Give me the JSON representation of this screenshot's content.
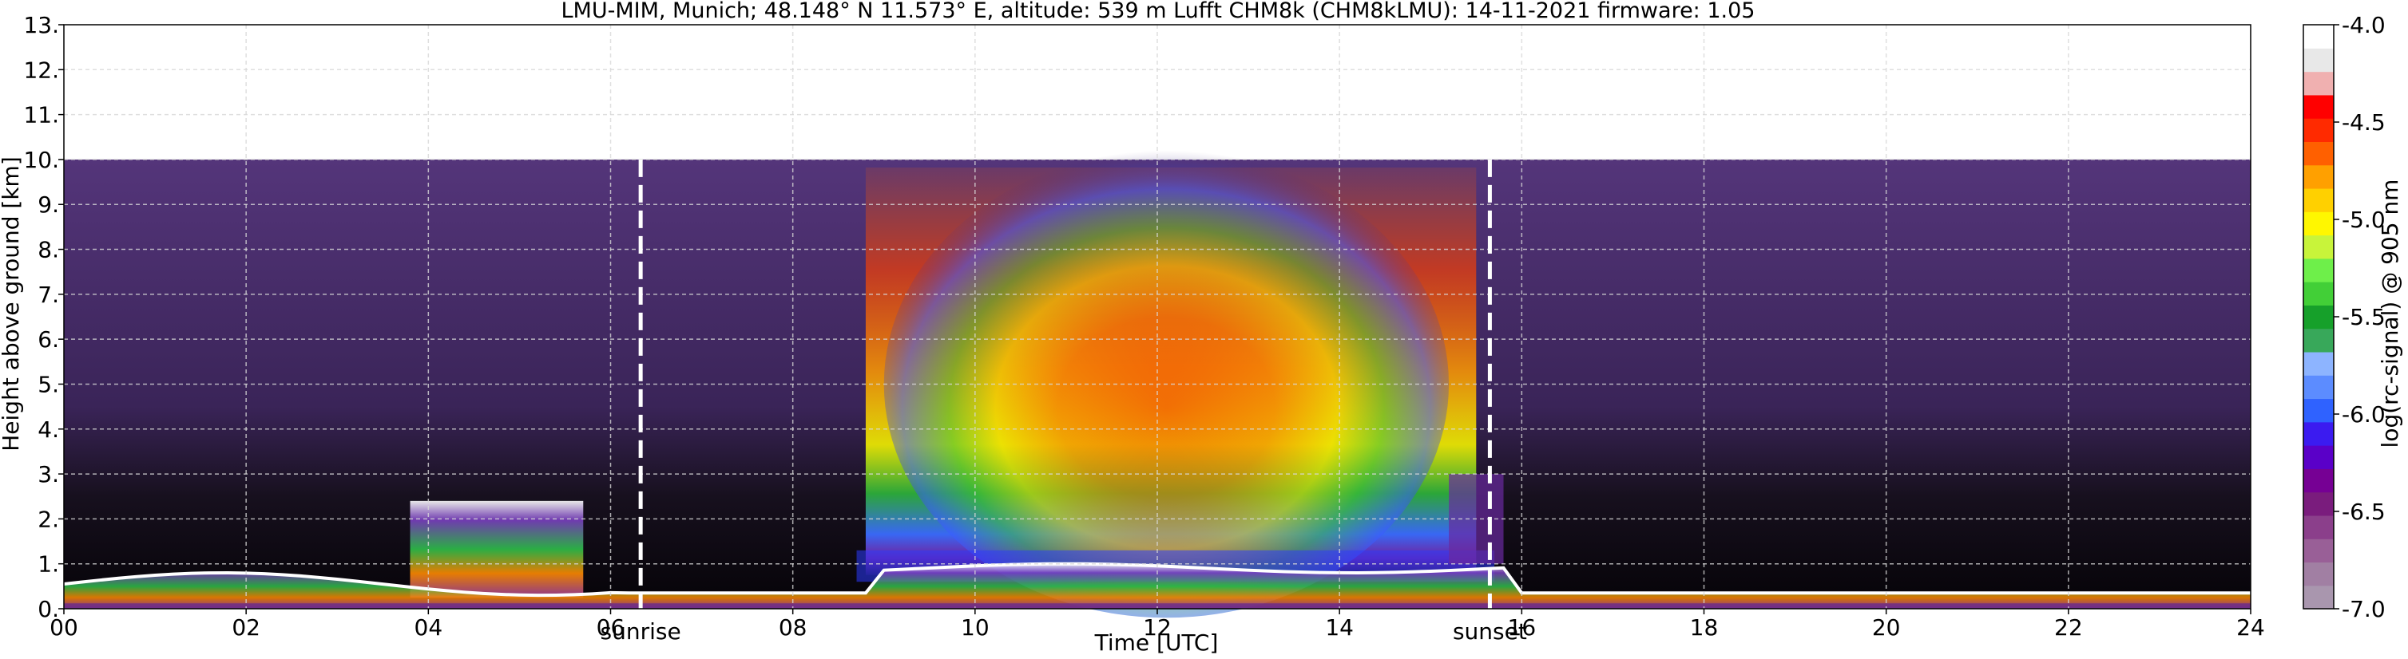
{
  "chart_data": {
    "type": "heatmap",
    "title": "LMU-MIM, Munich; 48.148° N 11.573° E, altitude: 539 m    Lufft CHM8k (CHM8kLMU): 14-11-2021    firmware: 1.05",
    "xlabel": "Time [UTC]",
    "ylabel": "Height above ground [km]",
    "xlim": [
      0,
      24
    ],
    "ylim": [
      0,
      13
    ],
    "x_ticks": [
      0,
      2,
      4,
      6,
      8,
      10,
      12,
      14,
      16,
      18,
      20,
      22,
      24
    ],
    "x_tick_labels": [
      "00",
      "02",
      "04",
      "06",
      "08",
      "10",
      "12",
      "14",
      "16",
      "18",
      "20",
      "22",
      "24"
    ],
    "y_ticks": [
      0,
      1,
      2,
      3,
      4,
      5,
      6,
      7,
      8,
      9,
      10,
      11,
      12,
      13
    ],
    "y_tick_labels": [
      "0.",
      "1.",
      "2.",
      "3.",
      "4.",
      "5.",
      "6.",
      "7.",
      "8.",
      "9.",
      "10.",
      "11.",
      "12.",
      "13."
    ],
    "grid": true,
    "data_top_km": 10,
    "events": [
      {
        "label": "sunrise",
        "x": 6.33
      },
      {
        "label": "sunset",
        "x": 15.65
      }
    ],
    "colorbar": {
      "label": "log(rc-signal) @ 905 nm",
      "min": -7.0,
      "max": -4.0,
      "ticks": [
        -7.0,
        -6.5,
        -6.0,
        -5.5,
        -5.0,
        -4.5,
        -4.0
      ],
      "tick_labels": [
        "-7.0",
        "-6.5",
        "-6.0",
        "-5.5",
        "-5.0",
        "-4.5",
        "-4.0"
      ],
      "colors": [
        "#a996ae",
        "#a17fa3",
        "#995f97",
        "#8b3f8b",
        "#7a1c7d",
        "#760094",
        "#5a00c8",
        "#3b1bf0",
        "#2f62ff",
        "#5c8cff",
        "#8db4ff",
        "#38a85a",
        "#16a02a",
        "#42cf37",
        "#6eef4a",
        "#c8f43a",
        "#fff700",
        "#ffd000",
        "#ffa000",
        "#ff6000",
        "#ff2a00",
        "#ff0000",
        "#f0b0b0",
        "#e8e8e8",
        "#ffffff"
      ]
    },
    "colorbar_segments_count": 25
  }
}
